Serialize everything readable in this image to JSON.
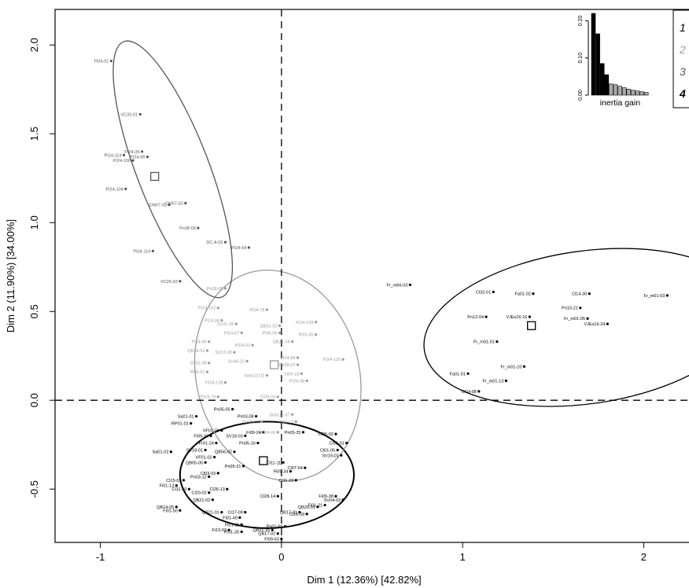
{
  "chart_data": {
    "type": "scatter",
    "title": "",
    "xlabel": "Dim 1 (12.36%) [42.82%]",
    "ylabel": "Dim 2 (11.90%) [34.00%]",
    "xlim": [
      -1.25,
      2.25
    ],
    "ylim": [
      -0.8,
      2.2
    ],
    "x_ticks": [
      -1,
      0,
      1,
      2
    ],
    "y_ticks": [
      -0.5,
      0.0,
      0.5,
      1.0,
      1.5,
      2.0
    ],
    "x_tick_labels": [
      "-1",
      "0",
      "1",
      "2"
    ],
    "y_tick_labels": [
      "-0.5",
      "0.0",
      "0.5",
      "1.0",
      "1.5",
      "2.0"
    ],
    "reference_lines": {
      "x": 0,
      "y": 0,
      "style": "dashed"
    },
    "clusters": [
      {
        "id": "1",
        "color": "#000000",
        "center": [
          -0.1,
          -0.34
        ],
        "ellipse": {
          "cx": -0.08,
          "cy": -0.42,
          "rx": 0.48,
          "ry": 0.3,
          "angle": 0
        },
        "points": [
          {
            "label": "Pn05-05",
            "x": -0.27,
            "y": -0.05
          },
          {
            "label": "Sa01-01",
            "x": -0.47,
            "y": -0.09
          },
          {
            "label": "RP01-01",
            "x": -0.5,
            "y": -0.13
          },
          {
            "label": "VF01-06",
            "x": -0.33,
            "y": -0.17
          },
          {
            "label": "Pn03-08",
            "x": -0.14,
            "y": -0.09
          },
          {
            "label": "Fi09-24",
            "x": -0.1,
            "y": -0.18
          },
          {
            "label": "Pn05-25",
            "x": 0.12,
            "y": -0.18
          },
          {
            "label": "Cl26-02",
            "x": 0.3,
            "y": -0.19
          },
          {
            "label": "Cl03-01",
            "x": 0.36,
            "y": -0.24
          },
          {
            "label": "Fi09-33",
            "x": -0.39,
            "y": -0.2
          },
          {
            "label": "SV18-03",
            "x": -0.2,
            "y": -0.2
          },
          {
            "label": "Fr01-24",
            "x": -0.36,
            "y": -0.24
          },
          {
            "label": "Pn05-16",
            "x": -0.13,
            "y": -0.24
          },
          {
            "label": "SV18-01",
            "x": -0.42,
            "y": -0.28
          },
          {
            "label": "QB56-02",
            "x": -0.26,
            "y": -0.29
          },
          {
            "label": "Cl01-05",
            "x": 0.31,
            "y": -0.28
          },
          {
            "label": "SV19-01",
            "x": 0.33,
            "y": -0.31
          },
          {
            "label": "VF01-02",
            "x": -0.37,
            "y": -0.32
          },
          {
            "label": "QB05-05",
            "x": -0.42,
            "y": -0.35
          },
          {
            "label": "Sa01-02",
            "x": -0.61,
            "y": -0.29
          },
          {
            "label": "Pn05-21",
            "x": -0.21,
            "y": -0.37
          },
          {
            "label": "Pn03-12",
            "x": -0.4,
            "y": -0.43
          },
          {
            "label": "Cl03-03",
            "x": -0.35,
            "y": -0.41
          },
          {
            "label": "Cl15-03",
            "x": -0.54,
            "y": -0.45
          },
          {
            "label": "Fi01-13",
            "x": -0.58,
            "y": -0.48
          },
          {
            "label": "Cl11-10",
            "x": -0.51,
            "y": -0.5
          },
          {
            "label": "Cl26-13",
            "x": -0.3,
            "y": -0.5
          },
          {
            "label": "Fi09-34",
            "x": 0.05,
            "y": -0.4
          },
          {
            "label": "Cl11-22",
            "x": 0.08,
            "y": -0.45
          },
          {
            "label": "Cl07-04",
            "x": 0.13,
            "y": -0.38
          },
          {
            "label": "Cl11-11",
            "x": 0.01,
            "y": -0.35
          },
          {
            "label": "Cl28-14",
            "x": -0.02,
            "y": -0.54
          },
          {
            "label": "Fi09-38",
            "x": 0.3,
            "y": -0.54
          },
          {
            "label": "SV04-02",
            "x": 0.34,
            "y": -0.56
          },
          {
            "label": "Fi01-21",
            "x": 0.24,
            "y": -0.59
          },
          {
            "label": "QB29-01",
            "x": 0.2,
            "y": -0.6
          },
          {
            "label": "Cl20-02",
            "x": -0.4,
            "y": -0.52
          },
          {
            "label": "QB21-02",
            "x": -0.38,
            "y": -0.56
          },
          {
            "label": "QB14-05",
            "x": -0.58,
            "y": -0.6
          },
          {
            "label": "Fi01-50",
            "x": -0.56,
            "y": -0.62
          },
          {
            "label": "Cl17-09",
            "x": -0.2,
            "y": -0.63
          },
          {
            "label": "QB21-01",
            "x": -0.33,
            "y": -0.63
          },
          {
            "label": "Fi01-49",
            "x": -0.23,
            "y": -0.66
          },
          {
            "label": "Fi01-11",
            "x": -0.22,
            "y": -0.7
          },
          {
            "label": "Fi13-03",
            "x": -0.29,
            "y": -0.73
          },
          {
            "label": "Fr01-26",
            "x": -0.22,
            "y": -0.74
          },
          {
            "label": "QB17-01",
            "x": 0.1,
            "y": -0.63
          },
          {
            "label": "Cl16-09",
            "x": 0.14,
            "y": -0.64
          },
          {
            "label": "Pn01-69",
            "x": 0.02,
            "y": -0.71
          },
          {
            "label": "QB31-35",
            "x": -0.05,
            "y": -0.73
          },
          {
            "label": "QB17-02",
            "x": -0.02,
            "y": -0.75
          },
          {
            "label": "Fi09-63",
            "x": 0.0,
            "y": -0.78
          }
        ]
      },
      {
        "id": "2",
        "color": "#999999",
        "center": [
          -0.04,
          0.2
        ],
        "ellipse": {
          "cx": -0.02,
          "cy": 0.14,
          "rx": 0.45,
          "ry": 0.6,
          "angle": -14
        },
        "points": [
          {
            "label": "Pn38-05",
            "x": -0.31,
            "y": 0.63
          },
          {
            "label": "PI24-102",
            "x": -0.35,
            "y": 0.52
          },
          {
            "label": "PI24-78",
            "x": -0.08,
            "y": 0.51
          },
          {
            "label": "PI24-04",
            "x": -0.33,
            "y": 0.45
          },
          {
            "label": "SV21-08",
            "x": -0.25,
            "y": 0.43
          },
          {
            "label": "QB31-03",
            "x": -0.01,
            "y": 0.42
          },
          {
            "label": "PI24-129",
            "x": 0.19,
            "y": 0.44
          },
          {
            "label": "PI24-67",
            "x": -0.22,
            "y": 0.38
          },
          {
            "label": "Pi06-05",
            "x": -0.01,
            "y": 0.38
          },
          {
            "label": "Pi02-05",
            "x": 0.19,
            "y": 0.37
          },
          {
            "label": "PI24-90",
            "x": -0.4,
            "y": 0.33
          },
          {
            "label": "PI24-02",
            "x": -0.16,
            "y": 0.31
          },
          {
            "label": "QB31-04",
            "x": 0.06,
            "y": 0.33
          },
          {
            "label": "QB34-01",
            "x": -0.41,
            "y": 0.28
          },
          {
            "label": "SV13-20",
            "x": -0.26,
            "y": 0.27
          },
          {
            "label": "PI24-84",
            "x": 0.09,
            "y": 0.24
          },
          {
            "label": "SV32-08",
            "x": -0.4,
            "y": 0.21
          },
          {
            "label": "SV46-22",
            "x": -0.19,
            "y": 0.22
          },
          {
            "label": "Pn38-07",
            "x": 0.09,
            "y": 0.2
          },
          {
            "label": "PI24-120",
            "x": 0.34,
            "y": 0.23
          },
          {
            "label": "Pi06-01",
            "x": -0.41,
            "y": 0.16
          },
          {
            "label": "Fi04-18",
            "x": 0.11,
            "y": 0.15
          },
          {
            "label": "PI24-128",
            "x": -0.31,
            "y": 0.1
          },
          {
            "label": "Sisto12-02",
            "x": -0.08,
            "y": 0.14
          },
          {
            "label": "PI24-98",
            "x": 0.14,
            "y": 0.11
          },
          {
            "label": "PI24-79",
            "x": -0.35,
            "y": 0.02
          },
          {
            "label": "Cl09-03",
            "x": -0.02,
            "y": 0.02
          },
          {
            "label": "Sisto12-07",
            "x": 0.06,
            "y": -0.08
          },
          {
            "label": "Cl03-12",
            "x": 0.08,
            "y": -0.12
          },
          {
            "label": "PI24-06",
            "x": -0.02,
            "y": -0.18
          },
          {
            "label": "SV05-01",
            "x": -0.11,
            "y": -0.12
          }
        ]
      },
      {
        "id": "3",
        "color": "#555555",
        "center": [
          -0.7,
          1.26
        ],
        "ellipse": {
          "cx": -0.6,
          "cy": 1.3,
          "rx": 0.2,
          "ry": 0.77,
          "angle": -21
        },
        "points": [
          {
            "label": "Fi04-01",
            "x": -0.94,
            "y": 1.91
          },
          {
            "label": "VC32-01",
            "x": -0.78,
            "y": 1.61
          },
          {
            "label": "PI24-113",
            "x": -0.87,
            "y": 1.38
          },
          {
            "label": "PI24-35",
            "x": -0.77,
            "y": 1.4
          },
          {
            "label": "PI24-100",
            "x": -0.82,
            "y": 1.35
          },
          {
            "label": "PI24-99",
            "x": -0.74,
            "y": 1.37
          },
          {
            "label": "PI24-104",
            "x": -0.86,
            "y": 1.19
          },
          {
            "label": "CM07-02",
            "x": -0.62,
            "y": 1.1
          },
          {
            "label": "CM07-03",
            "x": -0.53,
            "y": 1.11
          },
          {
            "label": "Pn38-09",
            "x": -0.46,
            "y": 0.97
          },
          {
            "label": "DC.A-02",
            "x": -0.31,
            "y": 0.89
          },
          {
            "label": "PI24-114",
            "x": -0.71,
            "y": 0.84
          },
          {
            "label": "PI24-64",
            "x": -0.18,
            "y": 0.86
          },
          {
            "label": "VC26-03",
            "x": -0.56,
            "y": 0.67
          }
        ]
      },
      {
        "id": "4",
        "color": "#000000",
        "center": [
          1.38,
          0.42
        ],
        "ellipse": {
          "cx": 1.68,
          "cy": 0.41,
          "rx": 0.9,
          "ry": 0.43,
          "angle": -8
        },
        "points": [
          {
            "label": "Fr_m66-03",
            "x": 0.71,
            "y": 0.65
          },
          {
            "label": "Cl32-01",
            "x": 1.17,
            "y": 0.61
          },
          {
            "label": "Fa01-02",
            "x": 1.39,
            "y": 0.6
          },
          {
            "label": "Cl14-30",
            "x": 1.7,
            "y": 0.6
          },
          {
            "label": "Fr_m01-03",
            "x": 2.13,
            "y": 0.59
          },
          {
            "label": "Pn10-21",
            "x": 1.65,
            "y": 0.52
          },
          {
            "label": "Pn12-04",
            "x": 1.13,
            "y": 0.47
          },
          {
            "label": "VJEs16-16",
            "x": 1.37,
            "y": 0.47
          },
          {
            "label": "Fr_m01-05",
            "x": 1.69,
            "y": 0.46
          },
          {
            "label": "VJEs16-24",
            "x": 1.8,
            "y": 0.43
          },
          {
            "label": "Fr_m01-01",
            "x": 1.19,
            "y": 0.33
          },
          {
            "label": "Fr_m01-10",
            "x": 1.34,
            "y": 0.19
          },
          {
            "label": "Fa01-01",
            "x": 1.03,
            "y": 0.15
          },
          {
            "label": "Fr_m01-13",
            "x": 1.24,
            "y": 0.11
          },
          {
            "label": "OGil-08",
            "x": 1.09,
            "y": 0.05
          }
        ]
      }
    ],
    "inset": {
      "type": "bar",
      "xlabel": "inertia gain",
      "y_ticks": [
        0.0,
        0.1,
        0.2
      ],
      "y_tick_labels": [
        "0.00",
        "0.10",
        "0.20"
      ],
      "ylim": [
        0,
        0.22
      ],
      "values": [
        0.22,
        0.165,
        0.085,
        0.055,
        0.03,
        0.028,
        0.024,
        0.02,
        0.016,
        0.013,
        0.011,
        0.009,
        0.007
      ],
      "bar_colors": [
        "#000000",
        "#000000",
        "#000000",
        "#000000",
        "#aaaaaa",
        "#aaaaaa",
        "#aaaaaa",
        "#aaaaaa",
        "#aaaaaa",
        "#aaaaaa",
        "#aaaaaa",
        "#aaaaaa",
        "#aaaaaa"
      ]
    },
    "legend": {
      "position": "top-right",
      "items": [
        {
          "label": "1",
          "color": "#000000"
        },
        {
          "label": "2",
          "color": "#999999"
        },
        {
          "label": "3",
          "color": "#555555"
        },
        {
          "label": "4",
          "color": "#000000"
        }
      ]
    }
  }
}
